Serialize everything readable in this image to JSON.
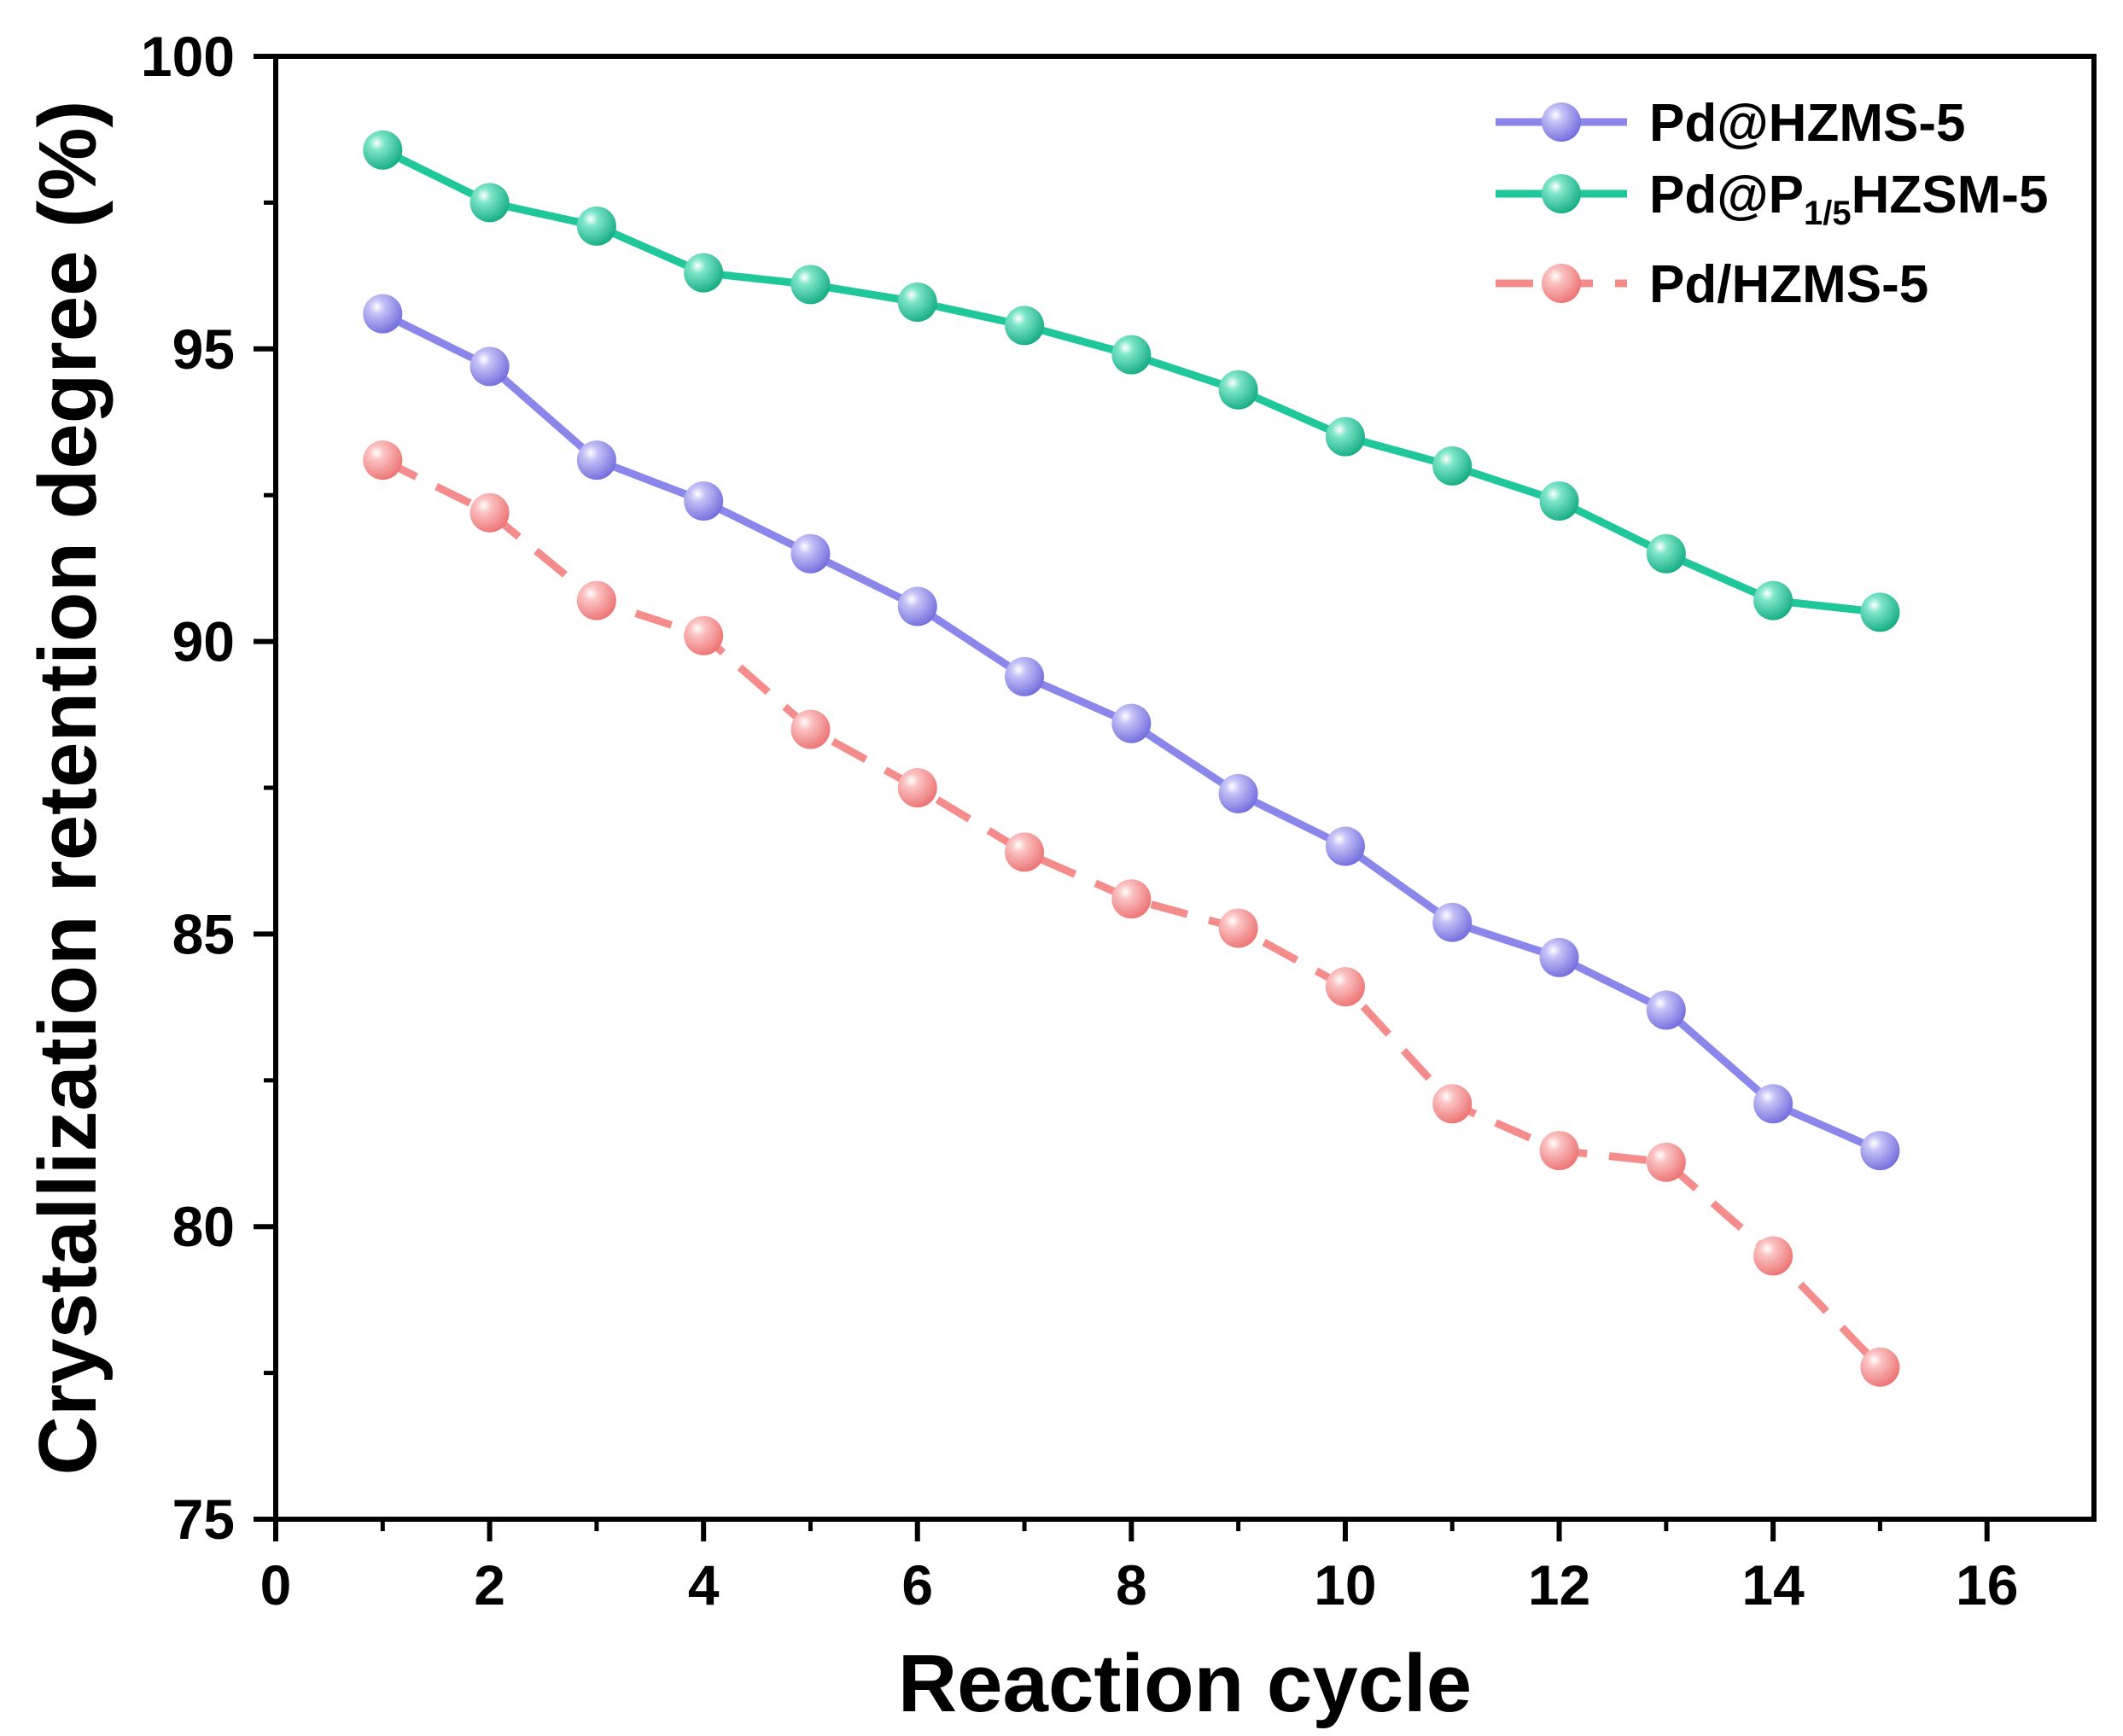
{
  "chart_data": {
    "type": "line",
    "title": "",
    "xlabel": "Reaction cycle",
    "ylabel": "Crystallization retention degree (%)",
    "xlim": [
      0,
      17
    ],
    "ylim": [
      75,
      100
    ],
    "xticks": [
      0,
      2,
      4,
      6,
      8,
      10,
      12,
      14,
      16
    ],
    "xtick_labels": [
      "0",
      "2",
      "4",
      "6",
      "8",
      "10",
      "12",
      "14",
      "16"
    ],
    "yticks": [
      75,
      80,
      85,
      90,
      95,
      100
    ],
    "ytick_labels": [
      "75",
      "80",
      "85",
      "90",
      "95",
      "100"
    ],
    "grid": false,
    "legend_position": "top-right",
    "x": [
      1,
      2,
      3,
      4,
      5,
      6,
      7,
      8,
      9,
      10,
      11,
      12,
      13,
      14,
      15
    ],
    "series": [
      {
        "name": "Pd@HZMS-5",
        "legend_text": "Pd@HZMS-5",
        "color": "#8b87ea",
        "dashed": false,
        "values": [
          95.6,
          94.7,
          93.1,
          92.4,
          91.5,
          90.6,
          89.4,
          88.6,
          87.4,
          86.5,
          85.2,
          84.6,
          83.7,
          82.1,
          81.3
        ]
      },
      {
        "name": "Pd@P1/5HZSM-5",
        "legend_text": "Pd@P",
        "legend_sub": "1/5",
        "legend_suffix": "HZSM-5",
        "color": "#1fc79a",
        "dashed": false,
        "values": [
          98.4,
          97.5,
          97.1,
          96.3,
          96.1,
          95.8,
          95.4,
          94.9,
          94.3,
          93.5,
          93.0,
          92.4,
          91.5,
          90.7,
          90.5
        ]
      },
      {
        "name": "Pd/HZMS-5",
        "legend_text": "Pd/HZMS-5",
        "color": "#f58c8c",
        "dashed": true,
        "values": [
          93.1,
          92.2,
          90.7,
          90.1,
          88.5,
          87.5,
          86.4,
          85.6,
          85.1,
          84.1,
          82.1,
          81.3,
          81.1,
          79.5,
          77.6
        ]
      }
    ]
  }
}
